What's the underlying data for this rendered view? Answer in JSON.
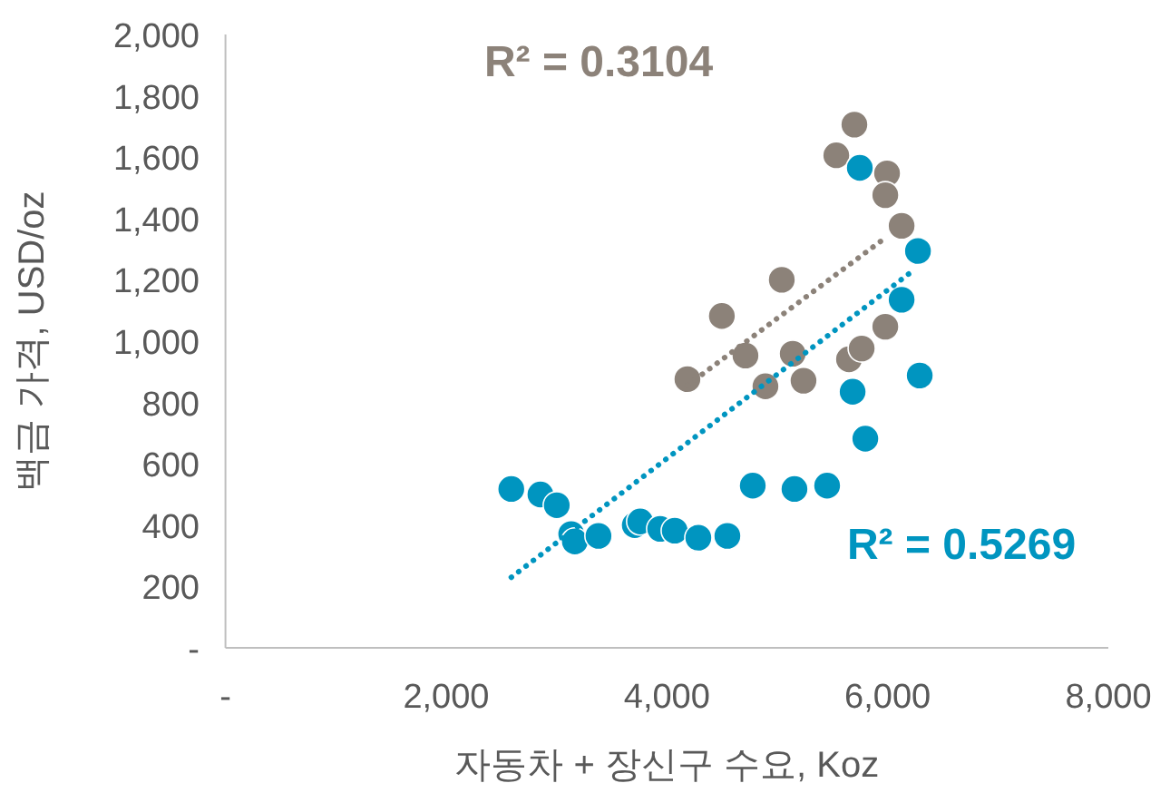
{
  "chart_data": {
    "type": "scatter",
    "xlabel": "자동차 + 장신구 수요, Koz",
    "ylabel": "백금 가격, USD/oz",
    "annotations": [
      "R² = 0.3104",
      "R² = 0.5269"
    ],
    "xlim": [
      0,
      8000
    ],
    "xticks": [
      {
        "value": 0,
        "label": "-"
      },
      {
        "value": 2000,
        "label": "2,000"
      },
      {
        "value": 4000,
        "label": "4,000"
      },
      {
        "value": 6000,
        "label": "6,000"
      },
      {
        "value": 8000,
        "label": "8,000"
      }
    ],
    "ylim": [
      0,
      2000
    ],
    "yticks": [
      {
        "value": 0,
        "label": "-"
      },
      200,
      400,
      600,
      800,
      {
        "value": 1000,
        "label": "1,000"
      },
      {
        "value": 1200,
        "label": "1,200"
      },
      {
        "value": 1400,
        "label": "1,400"
      },
      {
        "value": 1600,
        "label": "1,600"
      },
      {
        "value": 1800,
        "label": "1,800"
      },
      {
        "value": 2000,
        "label": "2,000"
      }
    ],
    "grid": false,
    "marker": "circle",
    "series": [
      {
        "color": "#8c8279",
        "x": [
          4186,
          4498,
          4712,
          4893,
          5041,
          5140,
          5238,
          5650,
          5765,
          5979,
          5535,
          5699,
          5995,
          5979,
          6127
        ],
        "values": [
          876,
          1082,
          953,
          853,
          1200,
          959,
          871,
          941,
          976,
          1047,
          1606,
          1706,
          1547,
          1476,
          1376
        ]
      },
      {
        "color": "#0095c0",
        "x": [
          5748,
          6275,
          6127,
          6291,
          5683,
          5798,
          4778,
          5156,
          5452,
          2590,
          2854,
          3002,
          3133,
          3166,
          3380,
          3709,
          3758,
          3939,
          4071,
          4285,
          4548
        ],
        "values": [
          1565,
          1294,
          1135,
          888,
          835,
          682,
          529,
          518,
          529,
          518,
          500,
          465,
          371,
          347,
          365,
          400,
          412,
          388,
          382,
          359,
          365
        ]
      },
      {
        "type": "line",
        "line_style": "dotted",
        "marker": "none",
        "color": "#8c8279",
        "x": [
          4186,
          5995
        ],
        "values": [
          856,
          1341
        ]
      },
      {
        "type": "line",
        "line_style": "dotted",
        "marker": "none",
        "color": "#0095c0",
        "x": [
          2590,
          6209
        ],
        "values": [
          230,
          1224
        ]
      }
    ]
  }
}
